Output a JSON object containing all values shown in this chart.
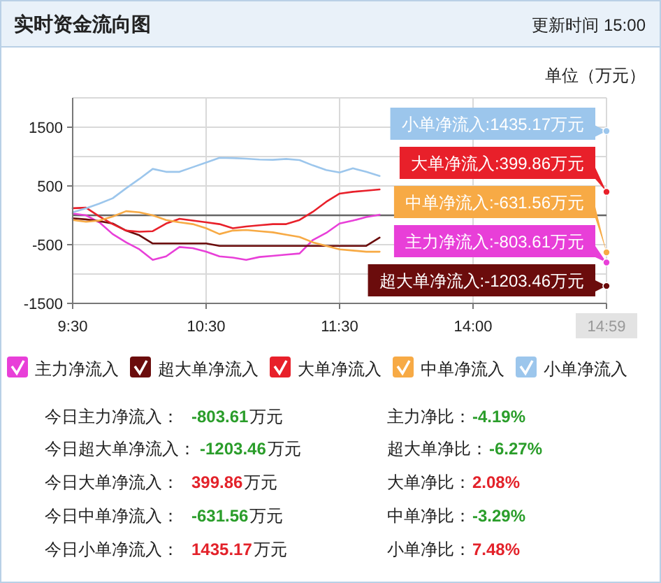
{
  "chart_data": {
    "type": "line",
    "title": "实时资金流向图",
    "subtitle": "更新时间 15:00",
    "ylabel": "单位（万元）",
    "categories": [
      "9:30",
      null,
      null,
      null,
      null,
      null,
      null,
      null,
      null,
      null,
      "10:30",
      null,
      null,
      null,
      null,
      null,
      null,
      null,
      null,
      null,
      "11:30",
      null,
      null,
      null,
      null,
      null,
      null,
      null,
      null,
      null,
      "14:00",
      null,
      null,
      null,
      null,
      null,
      null,
      null,
      null,
      null,
      "14:59"
    ],
    "ylim": [
      -1500,
      2000
    ],
    "yticks": [
      {
        "value": -1500,
        "label": "-1500"
      },
      {
        "value": -1000,
        "label": null
      },
      {
        "value": -500,
        "label": "-500"
      },
      {
        "value": 0,
        "label": null
      },
      {
        "value": 500,
        "label": "500"
      },
      {
        "value": 1000,
        "label": null
      },
      {
        "value": 1500,
        "label": "1500"
      },
      {
        "value": 2000,
        "label": null
      }
    ],
    "grid": true,
    "legend": "bottom",
    "ref_lines": [
      {
        "axis": "y",
        "value": 0,
        "color": "#666666"
      }
    ],
    "series": [
      {
        "name": "主力净流入",
        "color": "#e83fd8",
        "values": [
          30,
          0,
          -120,
          -320,
          -460,
          -580,
          -760,
          -700,
          -540,
          -560,
          -620,
          -700,
          -720,
          -760,
          -710,
          -690,
          -670,
          -650,
          -420,
          -300,
          -140,
          -90,
          -30,
          10,
          null,
          null,
          null,
          null,
          null,
          null,
          null,
          null,
          null,
          null,
          null,
          null,
          null,
          null,
          null,
          null,
          -803.61
        ]
      },
      {
        "name": "超大单净流入",
        "color": "#6b0c0c",
        "values": [
          -50,
          -70,
          -100,
          -140,
          -260,
          -340,
          -480,
          -480,
          -480,
          -480,
          -480,
          -520,
          -520,
          -520,
          -520,
          -520,
          -520,
          -520,
          -520,
          -520,
          -520,
          -520,
          -520,
          -380,
          null,
          null,
          null,
          null,
          null,
          null,
          null,
          null,
          null,
          null,
          null,
          null,
          null,
          null,
          null,
          null,
          -1203.46
        ]
      },
      {
        "name": "大单净流入",
        "color": "#e8202a",
        "values": [
          120,
          130,
          -20,
          -150,
          -260,
          -280,
          -270,
          -140,
          -60,
          -90,
          -120,
          -150,
          -220,
          -190,
          -170,
          -150,
          -150,
          -80,
          60,
          230,
          370,
          400,
          420,
          440,
          null,
          null,
          null,
          null,
          null,
          null,
          null,
          null,
          null,
          null,
          null,
          null,
          null,
          null,
          null,
          null,
          399.86
        ]
      },
      {
        "name": "中单净流入",
        "color": "#f7aa45",
        "values": [
          -80,
          -110,
          -90,
          -20,
          70,
          50,
          0,
          -80,
          -120,
          -150,
          -220,
          -320,
          -260,
          -250,
          -270,
          -290,
          -330,
          -370,
          -460,
          -520,
          -580,
          -600,
          -620,
          -620,
          null,
          null,
          null,
          null,
          null,
          null,
          null,
          null,
          null,
          null,
          null,
          null,
          null,
          null,
          null,
          null,
          -631.56
        ]
      },
      {
        "name": "小单净流入",
        "color": "#9cc6ec",
        "values": [
          50,
          120,
          200,
          290,
          460,
          620,
          790,
          740,
          740,
          820,
          900,
          980,
          975,
          965,
          950,
          945,
          960,
          940,
          850,
          770,
          730,
          800,
          740,
          670,
          null,
          null,
          null,
          null,
          null,
          null,
          null,
          null,
          null,
          null,
          null,
          null,
          null,
          null,
          null,
          null,
          1435.17
        ]
      }
    ],
    "annotations": [
      {
        "text": "主力净流入:-803.61万元",
        "x": "14:59",
        "y": -803.61
      },
      {
        "text": "超大单净流入:-1203.46万元",
        "x": "14:59",
        "y": -1203.46
      },
      {
        "text": "大单净流入:399.86万元",
        "x": "14:59",
        "y": 399.86
      },
      {
        "text": "中单净流入:-631.56万元",
        "x": "14:59",
        "y": -631.56
      },
      {
        "text": "小单净流入:1435.17万元",
        "x": "14:59",
        "y": 1435.17
      },
      "今日主力净流入：",
      "-803.61",
      "万元",
      "主力净比：",
      "-4.19%",
      "今日超大单净流入：",
      "-1203.46",
      "万元",
      "超大单净比：",
      "-6.27%",
      "今日大单净流入：",
      "399.86",
      "万元",
      "大单净比：",
      "2.08%",
      "今日中单净流入：",
      "-631.56",
      "万元",
      "中单净比：",
      "-3.29%",
      "今日小单净流入：",
      "1435.17",
      "万元",
      "小单净比：",
      "7.48%"
    ]
  }
}
